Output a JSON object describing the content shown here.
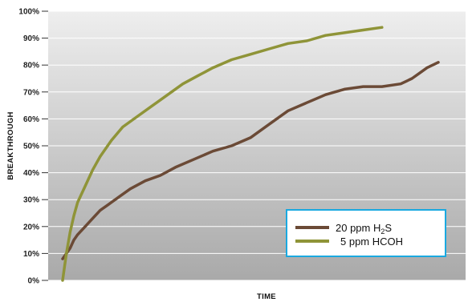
{
  "chart_data": {
    "type": "line",
    "title": "",
    "xlabel": "TIME",
    "ylabel": "BREAKTHROUGH",
    "ylim": [
      0,
      100
    ],
    "y_ticks": [
      "100%",
      "90%",
      "80%",
      "70%",
      "60%",
      "50%",
      "40%",
      "30%",
      "20%",
      "10%",
      "0%"
    ],
    "y_tick_values": [
      100,
      90,
      80,
      70,
      60,
      50,
      40,
      30,
      20,
      10,
      0
    ],
    "grid": true,
    "legend_position": "bottom-right",
    "background": {
      "top_color": "#eeeeee",
      "bottom_color": "#a9a9a9"
    },
    "legend_border_color": "#1aa9e0",
    "series": [
      {
        "name": "20 ppm H2S",
        "legend_main": "20 ppm H",
        "legend_sub": "2",
        "legend_tail": "S",
        "color": "#6b4a36",
        "x": [
          0,
          2,
          3,
          4,
          6,
          8,
          10,
          12,
          15,
          18,
          22,
          26,
          30,
          35,
          40,
          45,
          50,
          55,
          60,
          65,
          70,
          75,
          80,
          85,
          90,
          93,
          95,
          97,
          100
        ],
        "values": [
          8,
          12,
          15,
          17,
          20,
          23,
          26,
          28,
          31,
          34,
          37,
          39,
          42,
          45,
          48,
          50,
          53,
          58,
          63,
          66,
          69,
          71,
          72,
          72,
          73,
          75,
          77,
          79,
          81
        ]
      },
      {
        "name": "5 ppm HCOH",
        "legend_main": "5 ppm HCOH",
        "color": "#8f9438",
        "x": [
          0,
          1,
          2,
          3,
          4,
          6,
          8,
          10,
          13,
          16,
          20,
          24,
          28,
          32,
          36,
          40,
          45,
          50,
          55,
          60,
          65,
          70,
          75,
          80,
          85
        ],
        "values": [
          0,
          10,
          18,
          24,
          29,
          35,
          41,
          46,
          52,
          57,
          61,
          65,
          69,
          73,
          76,
          79,
          82,
          84,
          86,
          88,
          89,
          91,
          92,
          93,
          94
        ]
      }
    ]
  }
}
